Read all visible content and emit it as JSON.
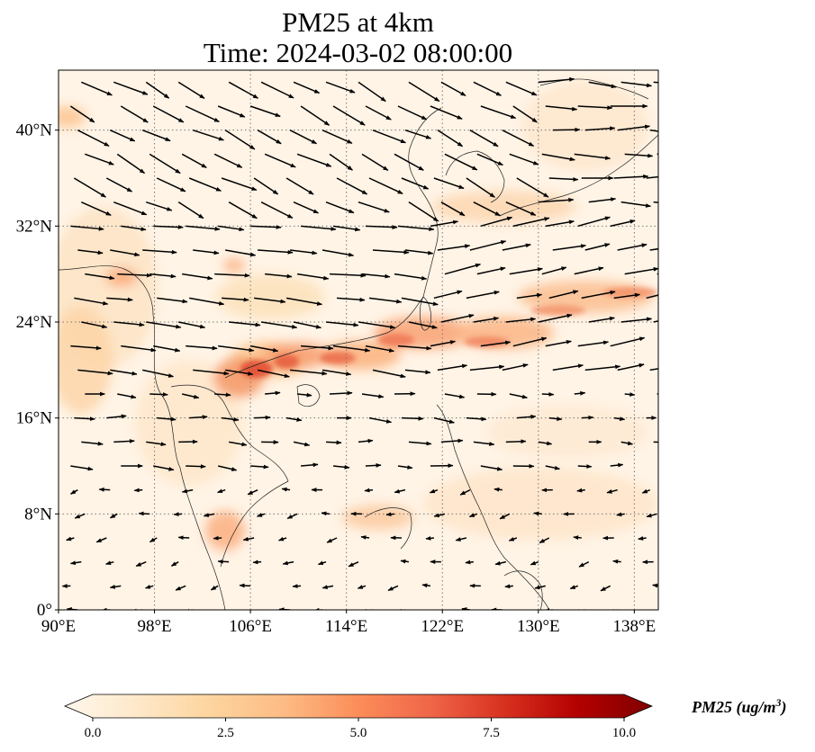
{
  "title": {
    "line1": "PM25 at 4km",
    "line2": "Time: 2024-03-02 08:00:00"
  },
  "map": {
    "lon_range": [
      90,
      140
    ],
    "lat_range": [
      0,
      45
    ],
    "lon_ticks": [
      {
        "value": 90,
        "label": "90°E"
      },
      {
        "value": 98,
        "label": "98°E"
      },
      {
        "value": 106,
        "label": "106°E"
      },
      {
        "value": 114,
        "label": "114°E"
      },
      {
        "value": 122,
        "label": "122°E"
      },
      {
        "value": 130,
        "label": "130°E"
      },
      {
        "value": 138,
        "label": "138°E"
      }
    ],
    "lat_ticks": [
      {
        "value": 0,
        "label": "0°"
      },
      {
        "value": 8,
        "label": "8°N"
      },
      {
        "value": 16,
        "label": "16°N"
      },
      {
        "value": 24,
        "label": "24°N"
      },
      {
        "value": 32,
        "label": "32°N"
      },
      {
        "value": 40,
        "label": "40°N"
      }
    ],
    "gridlines": "dotted"
  },
  "colorbar": {
    "variable": "PM25",
    "unit_base": "(ug/m",
    "unit_exp": "3",
    "unit_close": ")",
    "min": 0.0,
    "max": 10.0,
    "extend": "both",
    "colormap": "OrRd",
    "tick_values": [
      0.0,
      2.5,
      5.0,
      7.5,
      10.0
    ],
    "tick_labels": [
      "0.0",
      "2.5",
      "5.0",
      "7.5",
      "10.0"
    ],
    "stops": [
      "#fff7ec",
      "#fee8c8",
      "#fdd49e",
      "#fdbb84",
      "#fc8d59",
      "#ef6548",
      "#d7301f",
      "#b30000",
      "#7f0000"
    ]
  }
}
